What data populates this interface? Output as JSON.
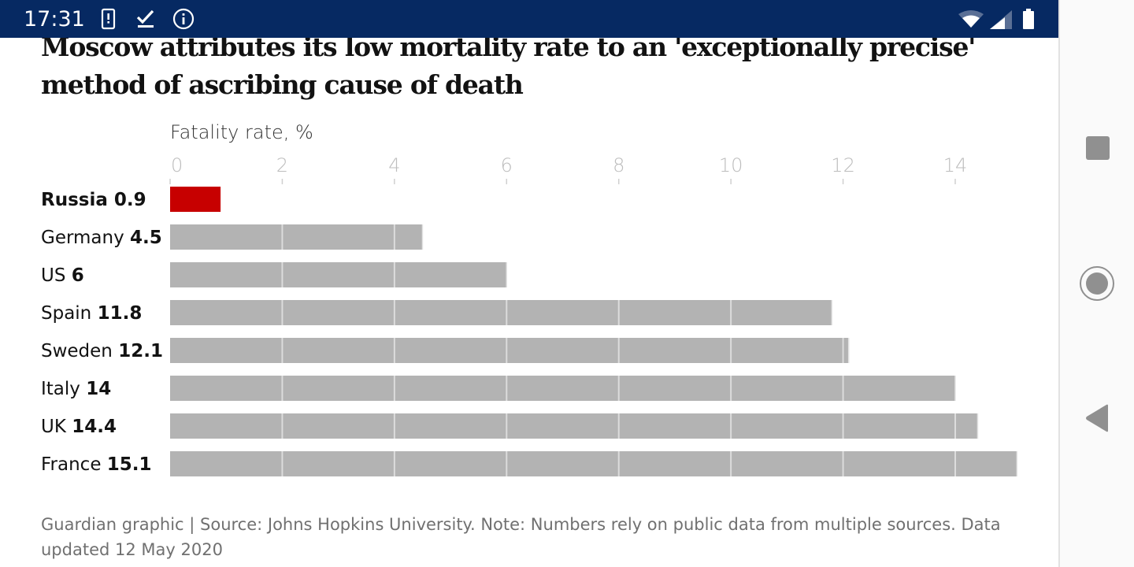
{
  "status_bar": {
    "time": "17:31",
    "left_icons": [
      "phone-alert-icon",
      "download-done-icon",
      "info-icon"
    ],
    "right_icons": [
      "wifi-icon",
      "cell-signal-icon",
      "battery-icon"
    ],
    "background": "#062962"
  },
  "nav_bar": {
    "buttons": [
      "recents-button",
      "home-button",
      "back-button"
    ]
  },
  "article": {
    "title_line1": "Moscow attributes its low mortality rate to an 'exceptionally precise'",
    "title_line2": "method of ascribing cause of death",
    "footer_line1": "Guardian graphic | Source: Johns Hopkins University. Note: Numbers rely on public data from multiple sources. Data",
    "footer_line2": "updated 12 May 2020"
  },
  "chart_data": {
    "type": "bar",
    "orientation": "horizontal",
    "title": "Moscow attributes its low mortality rate to an 'exceptionally precise' method of ascribing cause of death",
    "xlabel": "Fatality rate, %",
    "ylabel": "",
    "xlim": [
      0,
      15.1
    ],
    "xticks": [
      0,
      2,
      4,
      6,
      8,
      10,
      12,
      14
    ],
    "grid": true,
    "legend": "none",
    "categories": [
      "Russia",
      "Germany",
      "US",
      "Spain",
      "Sweden",
      "Italy",
      "UK",
      "France"
    ],
    "values": [
      0.9,
      4.5,
      6,
      11.8,
      12.1,
      14,
      14.4,
      15.1
    ],
    "value_labels": [
      "0.9",
      "4.5",
      "6",
      "11.8",
      "12.1",
      "14",
      "14.4",
      "15.1"
    ],
    "highlight": "Russia",
    "colors": {
      "highlight": "#c70000",
      "default": "#b3b3b3",
      "gridline": "#dcdcdc",
      "tick_text": "#bdbdbd"
    },
    "source": "Guardian graphic | Source: Johns Hopkins University. Note: Numbers rely on public data from multiple sources. Data updated 12 May 2020"
  }
}
